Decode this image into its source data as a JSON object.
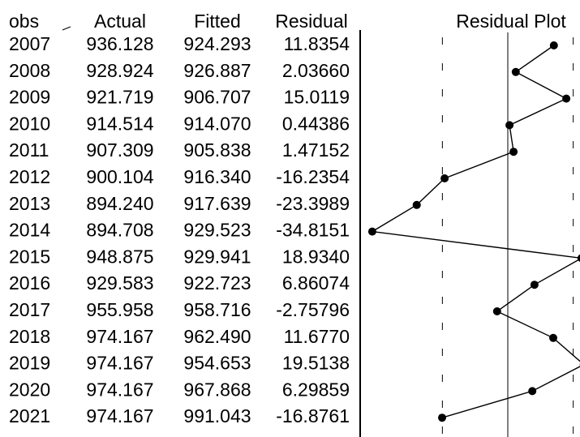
{
  "table": {
    "headers": [
      "obs",
      "Actual",
      "Fitted",
      "Residual"
    ],
    "rows": [
      {
        "obs": "2007",
        "actual": "936.128",
        "fitted": "924.293",
        "residual": "11.8354"
      },
      {
        "obs": "2008",
        "actual": "928.924",
        "fitted": "926.887",
        "residual": "2.03660"
      },
      {
        "obs": "2009",
        "actual": "921.719",
        "fitted": "906.707",
        "residual": "15.0119"
      },
      {
        "obs": "2010",
        "actual": "914.514",
        "fitted": "914.070",
        "residual": "0.44386"
      },
      {
        "obs": "2011",
        "actual": "907.309",
        "fitted": "905.838",
        "residual": "1.47152"
      },
      {
        "obs": "2012",
        "actual": "900.104",
        "fitted": "916.340",
        "residual": "-16.2354"
      },
      {
        "obs": "2013",
        "actual": "894.240",
        "fitted": "917.639",
        "residual": "-23.3989"
      },
      {
        "obs": "2014",
        "actual": "894.708",
        "fitted": "929.523",
        "residual": "-34.8151"
      },
      {
        "obs": "2015",
        "actual": "948.875",
        "fitted": "929.941",
        "residual": "18.9340"
      },
      {
        "obs": "2016",
        "actual": "929.583",
        "fitted": "922.723",
        "residual": "6.86074"
      },
      {
        "obs": "2017",
        "actual": "955.958",
        "fitted": "958.716",
        "residual": "-2.75796"
      },
      {
        "obs": "2018",
        "actual": "974.167",
        "fitted": "962.490",
        "residual": "11.6770"
      },
      {
        "obs": "2019",
        "actual": "974.167",
        "fitted": "954.653",
        "residual": "19.5138"
      },
      {
        "obs": "2020",
        "actual": "974.167",
        "fitted": "967.868",
        "residual": "6.29859"
      },
      {
        "obs": "2021",
        "actual": "974.167",
        "fitted": "991.043",
        "residual": "-16.8761"
      }
    ]
  },
  "chart_data": {
    "type": "line",
    "title": "Residual Plot",
    "orientation": "vertical",
    "x": [
      "2007",
      "2008",
      "2009",
      "2010",
      "2011",
      "2012",
      "2013",
      "2014",
      "2015",
      "2016",
      "2017",
      "2018",
      "2019",
      "2020",
      "2021"
    ],
    "series": [
      {
        "values": [
          11.8354,
          2.0366,
          15.0119,
          0.44386,
          1.47152,
          -16.2354,
          -23.3989,
          -34.8151,
          18.934,
          6.86074,
          -2.75796,
          11.677,
          19.5138,
          6.29859,
          -16.8761
        ]
      }
    ],
    "reference_lines": {
      "zero": 0,
      "band": 16.8
    },
    "markers": "filled-circle",
    "clip_range": [
      -34.8,
      19.5
    ]
  }
}
